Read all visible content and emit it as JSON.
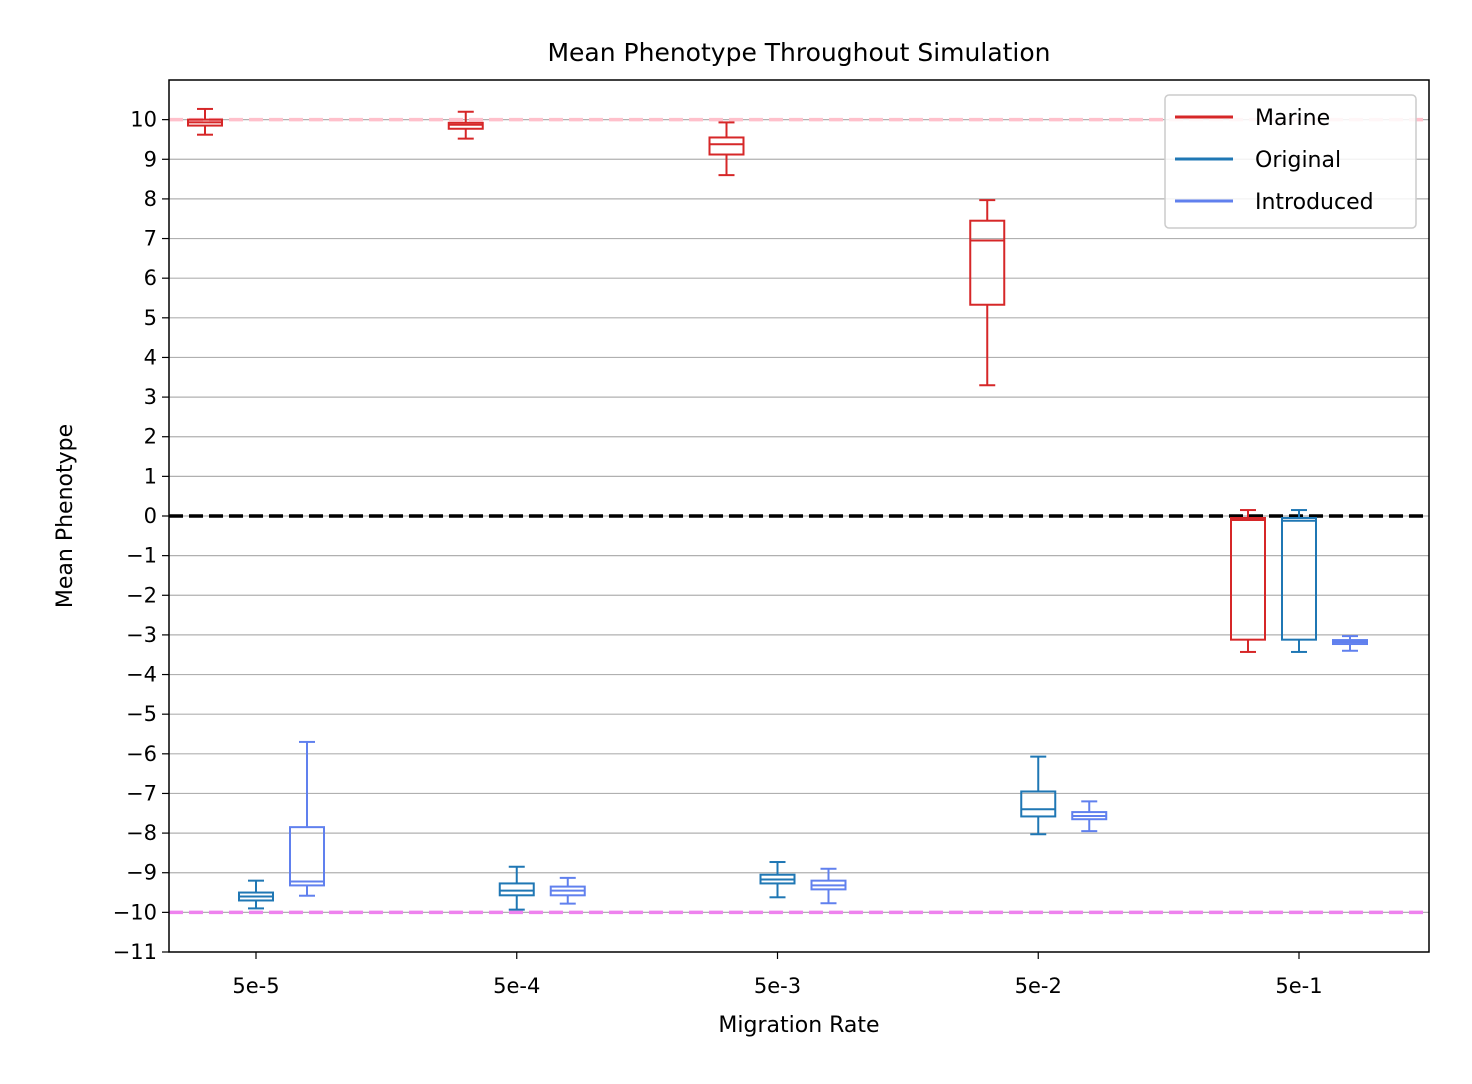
{
  "chart_data": {
    "type": "box",
    "title": "Mean Phenotype Throughout Simulation",
    "xlabel": "Migration Rate",
    "ylabel": "Mean Phenotype",
    "categories": [
      "5e-5",
      "5e-4",
      "5e-3",
      "5e-2",
      "5e-1"
    ],
    "ylim": [
      -11,
      11
    ],
    "yticks": [
      10,
      9,
      8,
      7,
      6,
      5,
      4,
      3,
      2,
      1,
      0,
      -1,
      -2,
      -3,
      -4,
      -5,
      -6,
      -7,
      -8,
      -9,
      -10,
      -11
    ],
    "ytick_labels": [
      "10",
      "9",
      "8",
      "7",
      "6",
      "5",
      "4",
      "3",
      "2",
      "1",
      "0",
      "−1",
      "−2",
      "−3",
      "−4",
      "−5",
      "−6",
      "−7",
      "−8",
      "−9",
      "−10",
      "−11"
    ],
    "grid": "horizontal",
    "legend_position": "top-right",
    "reference_lines": [
      {
        "y": 10,
        "color": "#ffc0cb",
        "style": "dashed"
      },
      {
        "y": 0,
        "color": "#000000",
        "style": "dashed"
      },
      {
        "y": -10,
        "color": "#ee82ee",
        "style": "dashed"
      }
    ],
    "series": [
      {
        "name": "Marine",
        "color": "#d62728",
        "boxes": [
          {
            "category": "5e-5",
            "whislo": 9.62,
            "q1": 9.85,
            "med": 9.93,
            "q3": 10.0,
            "whishi": 10.27
          },
          {
            "category": "5e-4",
            "whislo": 9.52,
            "q1": 9.77,
            "med": 9.87,
            "q3": 9.92,
            "whishi": 10.2
          },
          {
            "category": "5e-3",
            "whislo": 8.6,
            "q1": 9.12,
            "med": 9.38,
            "q3": 9.55,
            "whishi": 9.93
          },
          {
            "category": "5e-2",
            "whislo": 3.3,
            "q1": 5.33,
            "med": 6.95,
            "q3": 7.45,
            "whishi": 7.97
          },
          {
            "category": "5e-1",
            "whislo": -3.43,
            "q1": -3.12,
            "med": -0.1,
            "q3": -0.05,
            "whishi": 0.15
          }
        ]
      },
      {
        "name": "Original",
        "color": "#1f77b4",
        "boxes": [
          {
            "category": "5e-5",
            "whislo": -9.9,
            "q1": -9.7,
            "med": -9.6,
            "q3": -9.5,
            "whishi": -9.2
          },
          {
            "category": "5e-4",
            "whislo": -9.93,
            "q1": -9.57,
            "med": -9.45,
            "q3": -9.27,
            "whishi": -8.85
          },
          {
            "category": "5e-3",
            "whislo": -9.62,
            "q1": -9.27,
            "med": -9.17,
            "q3": -9.05,
            "whishi": -8.73
          },
          {
            "category": "5e-2",
            "whislo": -8.03,
            "q1": -7.58,
            "med": -7.4,
            "q3": -6.95,
            "whishi": -6.07
          },
          {
            "category": "5e-1",
            "whislo": -3.43,
            "q1": -3.12,
            "med": -0.12,
            "q3": -0.05,
            "whishi": 0.15
          }
        ]
      },
      {
        "name": "Introduced",
        "color": "#6080ee",
        "boxes": [
          {
            "category": "5e-5",
            "whislo": -9.58,
            "q1": -9.32,
            "med": -9.22,
            "q3": -7.85,
            "whishi": -5.7
          },
          {
            "category": "5e-4",
            "whislo": -9.78,
            "q1": -9.57,
            "med": -9.45,
            "q3": -9.35,
            "whishi": -9.13
          },
          {
            "category": "5e-3",
            "whislo": -9.77,
            "q1": -9.42,
            "med": -9.32,
            "q3": -9.2,
            "whishi": -8.9
          },
          {
            "category": "5e-2",
            "whislo": -7.95,
            "q1": -7.65,
            "med": -7.57,
            "q3": -7.47,
            "whishi": -7.2
          },
          {
            "category": "5e-1",
            "whislo": -3.4,
            "q1": -3.23,
            "med": -3.18,
            "q3": -3.13,
            "whishi": -3.03
          }
        ]
      }
    ]
  }
}
